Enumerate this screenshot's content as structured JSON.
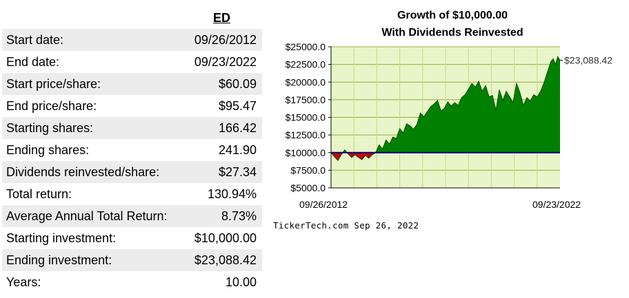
{
  "stats": {
    "ticker": "ED",
    "rows": [
      {
        "label": "Start date:",
        "value": "09/26/2012"
      },
      {
        "label": "End date:",
        "value": "09/23/2022"
      },
      {
        "label": "Start price/share:",
        "value": "$60.09"
      },
      {
        "label": "End price/share:",
        "value": "$95.47"
      },
      {
        "label": "Starting shares:",
        "value": "166.42"
      },
      {
        "label": "Ending shares:",
        "value": "241.90"
      },
      {
        "label": "Dividends reinvested/share:",
        "value": "$27.34"
      },
      {
        "label": "Total return:",
        "value": "130.94%"
      },
      {
        "label": "Average Annual Total Return:",
        "value": "8.73%"
      },
      {
        "label": "Starting investment:",
        "value": "$10,000.00"
      },
      {
        "label": "Ending investment:",
        "value": "$23,088.42"
      },
      {
        "label": "Years:",
        "value": "10.00"
      }
    ]
  },
  "chart_data": {
    "type": "area",
    "title": "Growth of $10,000.00",
    "subtitle": "With Dividends Reinvested",
    "xlabel": "",
    "ylabel": "",
    "x_tick_labels": [
      "09/26/2012",
      "09/23/2022"
    ],
    "y_ticks": [
      5000,
      7500,
      10000,
      12500,
      15000,
      17500,
      20000,
      22500,
      25000
    ],
    "y_tick_labels": [
      "$5000.0",
      "$7500.0",
      "$10000.0",
      "$12500.0",
      "$15000.0",
      "$17500.0",
      "$20000.0",
      "$22500.0",
      "$25000.0"
    ],
    "ylim": [
      5000,
      25000
    ],
    "baseline": 10000,
    "grid": true,
    "end_value_label": "$23,088.42",
    "colors": {
      "plot_background": "#e8f5c8",
      "above_baseline": "#008000",
      "below_baseline": "#cc0000",
      "baseline": "#000080",
      "grid": "#9aab3c"
    },
    "series": [
      {
        "x": [
          0.0,
          0.15,
          0.3,
          0.45,
          0.6,
          0.75,
          0.9,
          1.05,
          1.2,
          1.35,
          1.5,
          1.65,
          1.8,
          1.95,
          2.1,
          2.25,
          2.4,
          2.55,
          2.7,
          2.85,
          3.0,
          3.15,
          3.3,
          3.45,
          3.6,
          3.75,
          3.9,
          4.05,
          4.2,
          4.35,
          4.5,
          4.65,
          4.8,
          4.95,
          5.1,
          5.25,
          5.4,
          5.55,
          5.7,
          5.85,
          6.0,
          6.15,
          6.3,
          6.45,
          6.6,
          6.75,
          6.9,
          7.05,
          7.2,
          7.35,
          7.5,
          7.65,
          7.8,
          7.95,
          8.1,
          8.25,
          8.4,
          8.55,
          8.7,
          8.85,
          9.0,
          9.15,
          9.3,
          9.45,
          9.6,
          9.7,
          9.8,
          9.9,
          10.0
        ],
        "values": [
          10000,
          9400,
          8900,
          9700,
          10400,
          9800,
          9300,
          9700,
          9300,
          9000,
          9600,
          9200,
          9700,
          10000,
          11100,
          10500,
          11800,
          11200,
          12200,
          12000,
          13400,
          12800,
          14100,
          13800,
          13300,
          14000,
          15600,
          15100,
          15800,
          16500,
          16900,
          17400,
          15900,
          16300,
          17200,
          16600,
          17100,
          16700,
          17800,
          18200,
          19000,
          19800,
          19300,
          20100,
          18700,
          19500,
          17900,
          18100,
          16000,
          18900,
          17400,
          18700,
          17900,
          17100,
          19800,
          18500,
          16700,
          17800,
          17300,
          18200,
          17900,
          18700,
          19900,
          21400,
          22900,
          23300,
          22500,
          23600,
          23088
        ]
      }
    ]
  },
  "credit": "TickerTech.com Sep 26, 2022"
}
